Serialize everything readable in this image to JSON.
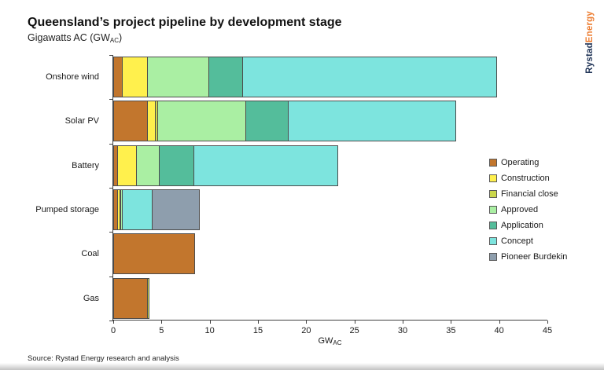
{
  "slide": {
    "title": "Queensland’s project pipeline by development stage",
    "subtitle": {
      "prefix": "Gigawatts AC (GW",
      "sub": "AC",
      "suffix": ")"
    },
    "source": "Source: Rystad Energy research and analysis",
    "logo": {
      "part1": "Rystad",
      "part2": "Energy",
      "color1": "#1F3356",
      "color2": "#ED7D31"
    }
  },
  "chart_data": {
    "type": "bar",
    "variant": "horizontal-stacked",
    "title": "Queensland’s project pipeline by development stage",
    "subtitle": "Gigawatts AC (GWAC)",
    "xlabel": {
      "prefix": "GW",
      "sub": "AC"
    },
    "ylabel": "",
    "xlim": [
      0,
      45
    ],
    "xticks": [
      0,
      5,
      10,
      15,
      20,
      25,
      30,
      35,
      40,
      45
    ],
    "grid": false,
    "legend_position": "right",
    "segment_border_color": "#4d4d4d",
    "categories": [
      "Onshore wind",
      "Solar PV",
      "Battery",
      "Pumped storage",
      "Coal",
      "Gas"
    ],
    "series": [
      {
        "name": "Operating",
        "color": "#C2762D",
        "values": [
          1.0,
          3.6,
          0.5,
          0.5,
          8.5,
          3.6
        ]
      },
      {
        "name": "Construction",
        "color": "#FFF04D",
        "values": [
          2.7,
          0.9,
          2.0,
          0.3,
          0,
          0
        ]
      },
      {
        "name": "Financial close",
        "color": "#CBD74B",
        "values": [
          0,
          0.3,
          0,
          0.2,
          0,
          0.2
        ]
      },
      {
        "name": "Approved",
        "color": "#AAEFA3",
        "values": [
          6.4,
          9.2,
          2.5,
          0.2,
          0,
          0
        ]
      },
      {
        "name": "Application",
        "color": "#54BD9B",
        "values": [
          3.6,
          4.5,
          3.6,
          0,
          0,
          0
        ]
      },
      {
        "name": "Concept",
        "color": "#7DE4DE",
        "values": [
          26.3,
          17.4,
          15.0,
          3.2,
          0,
          0
        ]
      },
      {
        "name": "Pioneer Burdekin",
        "color": "#8E9EAD",
        "values": [
          0,
          0,
          0,
          5.0,
          0,
          0
        ]
      }
    ],
    "totals": [
      40.0,
      35.9,
      23.6,
      9.4,
      8.5,
      3.8
    ]
  }
}
